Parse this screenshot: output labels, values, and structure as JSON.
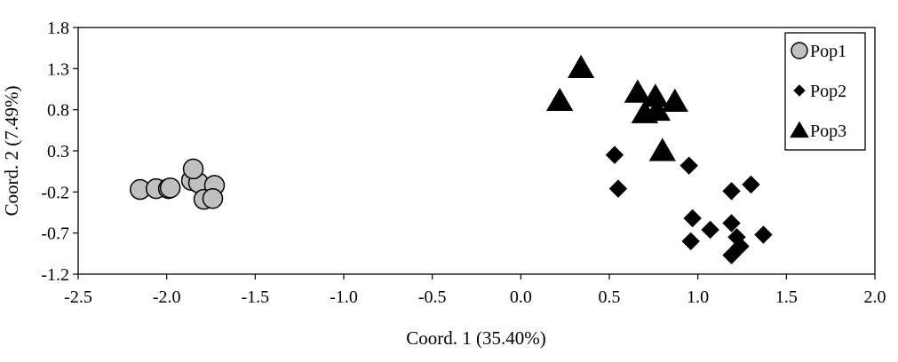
{
  "chart_data": {
    "type": "scatter",
    "title": "",
    "xlabel": "Coord. 1 (35.40%)",
    "ylabel": "Coord. 2 (7.49%)",
    "xlim": [
      -2.5,
      2.0
    ],
    "ylim": [
      -1.2,
      1.8
    ],
    "xticks": [
      -2.5,
      -2.0,
      -1.5,
      -1.0,
      -0.5,
      0.0,
      0.5,
      1.0,
      1.5,
      2.0
    ],
    "xtick_labels": [
      "-2.5",
      "-2.0",
      "-1.5",
      "-1.0",
      "-0.5",
      "0.0",
      "0.5",
      "1.0",
      "1.5",
      "2.0"
    ],
    "yticks": [
      1.8,
      1.3,
      0.8,
      0.3,
      -0.2,
      -0.7,
      -1.2
    ],
    "ytick_labels": [
      "1.8",
      "1.3",
      "0.8",
      "0.3",
      "-0.2",
      "-0.7",
      "-1.2"
    ],
    "grid": false,
    "legend_position": "top-right",
    "series": [
      {
        "name": "Pop1",
        "marker": "circle",
        "color": "#c0c0c0",
        "points": [
          {
            "x": -2.15,
            "y": -0.17
          },
          {
            "x": -2.06,
            "y": -0.16
          },
          {
            "x": -1.99,
            "y": -0.16
          },
          {
            "x": -1.98,
            "y": -0.15
          },
          {
            "x": -1.86,
            "y": -0.06
          },
          {
            "x": -1.82,
            "y": -0.09
          },
          {
            "x": -1.85,
            "y": 0.08
          },
          {
            "x": -1.73,
            "y": -0.12
          },
          {
            "x": -1.79,
            "y": -0.29
          },
          {
            "x": -1.74,
            "y": -0.28
          }
        ]
      },
      {
        "name": "Pop2",
        "marker": "diamond",
        "color": "#000000",
        "points": [
          {
            "x": 0.53,
            "y": 0.25
          },
          {
            "x": 0.55,
            "y": -0.16
          },
          {
            "x": 0.95,
            "y": 0.12
          },
          {
            "x": 0.97,
            "y": -0.52
          },
          {
            "x": 0.96,
            "y": -0.8
          },
          {
            "x": 1.07,
            "y": -0.66
          },
          {
            "x": 1.19,
            "y": -0.19
          },
          {
            "x": 1.3,
            "y": -0.11
          },
          {
            "x": 1.19,
            "y": -0.58
          },
          {
            "x": 1.22,
            "y": -0.75
          },
          {
            "x": 1.24,
            "y": -0.86
          },
          {
            "x": 1.19,
            "y": -0.97
          },
          {
            "x": 1.37,
            "y": -0.72
          }
        ]
      },
      {
        "name": "Pop3",
        "marker": "triangle",
        "color": "#000000",
        "points": [
          {
            "x": 0.22,
            "y": 0.91
          },
          {
            "x": 0.34,
            "y": 1.31
          },
          {
            "x": 0.66,
            "y": 1.01
          },
          {
            "x": 0.76,
            "y": 0.96
          },
          {
            "x": 0.7,
            "y": 0.76
          },
          {
            "x": 0.77,
            "y": 0.79
          },
          {
            "x": 0.87,
            "y": 0.9
          },
          {
            "x": 0.8,
            "y": 0.3
          }
        ]
      }
    ]
  }
}
